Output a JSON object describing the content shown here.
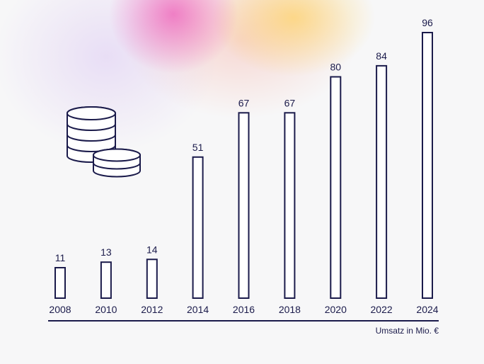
{
  "chart_data": {
    "type": "bar",
    "categories": [
      "2008",
      "2010",
      "2012",
      "2014",
      "2016",
      "2018",
      "2020",
      "2022",
      "2024"
    ],
    "values": [
      11,
      13,
      14,
      51,
      67,
      67,
      80,
      84,
      96
    ],
    "data_labels": [
      "11",
      "13",
      "14",
      "51",
      "67",
      "67",
      "80",
      "84",
      "96"
    ],
    "unit_label": "Umsatz in Mio. €",
    "ylim": [
      0,
      96
    ],
    "grid": false,
    "legend": "none",
    "bar_style": "outlined",
    "colors": {
      "ink": "#1b1b4b",
      "bar_fill": "#ffffff",
      "background": "#f7f7f8"
    },
    "decoration": {
      "icon": "coin-stack-icon"
    }
  }
}
